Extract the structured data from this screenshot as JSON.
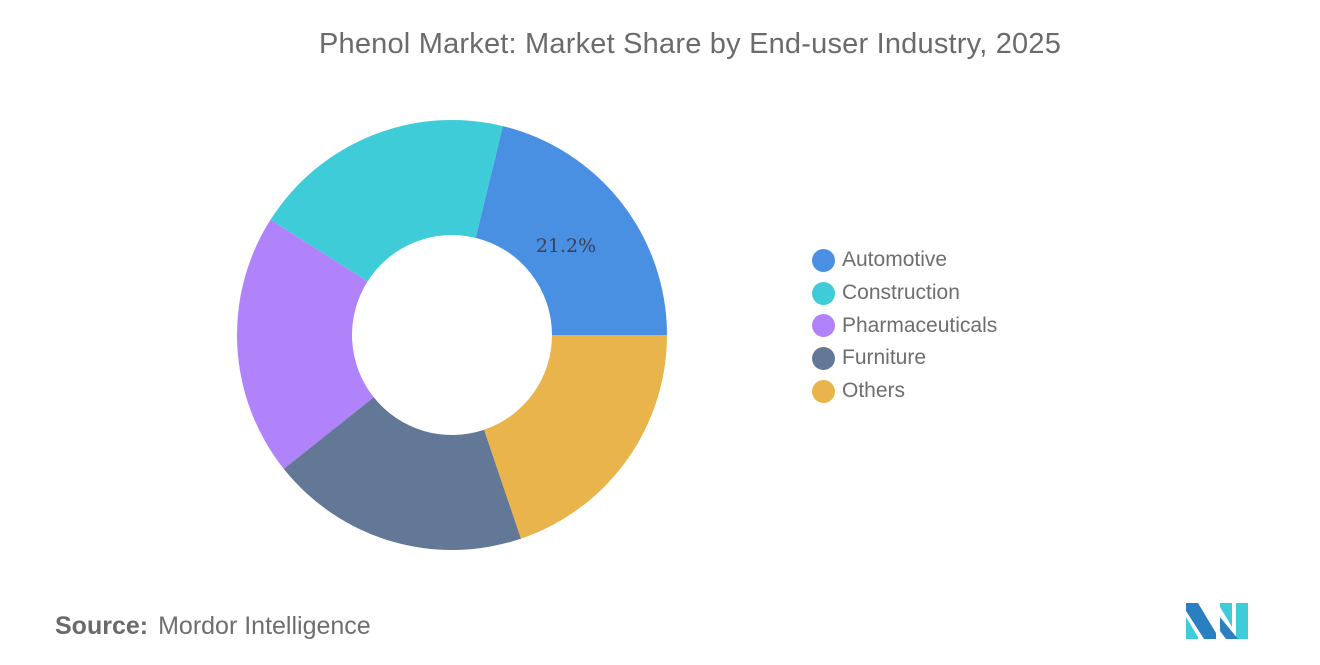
{
  "title": "Phenol Market: Market Share by End-user Industry, 2025",
  "source": {
    "label": "Source:",
    "value": "Mordor Intelligence"
  },
  "logo": {
    "icon": "mordor-intelligence-logo-icon"
  },
  "legend": [
    {
      "label": "Automotive",
      "color": "#4a90e2"
    },
    {
      "label": "Construction",
      "color": "#3ecdd8"
    },
    {
      "label": "Pharmaceuticals",
      "color": "#b083fa"
    },
    {
      "label": "Furniture",
      "color": "#637796"
    },
    {
      "label": "Others",
      "color": "#e9b44c"
    }
  ],
  "data_labels": {
    "automotive": "21.2%"
  },
  "chart_data": {
    "type": "pie",
    "subtype": "donut",
    "title": "Phenol Market: Market Share by End-user Industry, 2025",
    "categories": [
      "Automotive",
      "Construction",
      "Pharmaceuticals",
      "Furniture",
      "Others"
    ],
    "values": [
      21.2,
      19.8,
      19.7,
      19.5,
      19.8
    ],
    "labeled_values": {
      "Automotive": "21.2%"
    },
    "colors": [
      "#4a90e2",
      "#3ecdd8",
      "#b083fa",
      "#637796",
      "#e9b44c"
    ],
    "legend_position": "right",
    "start_angle": "3 o'clock, counter-clockwise",
    "source": "Mordor Intelligence"
  }
}
